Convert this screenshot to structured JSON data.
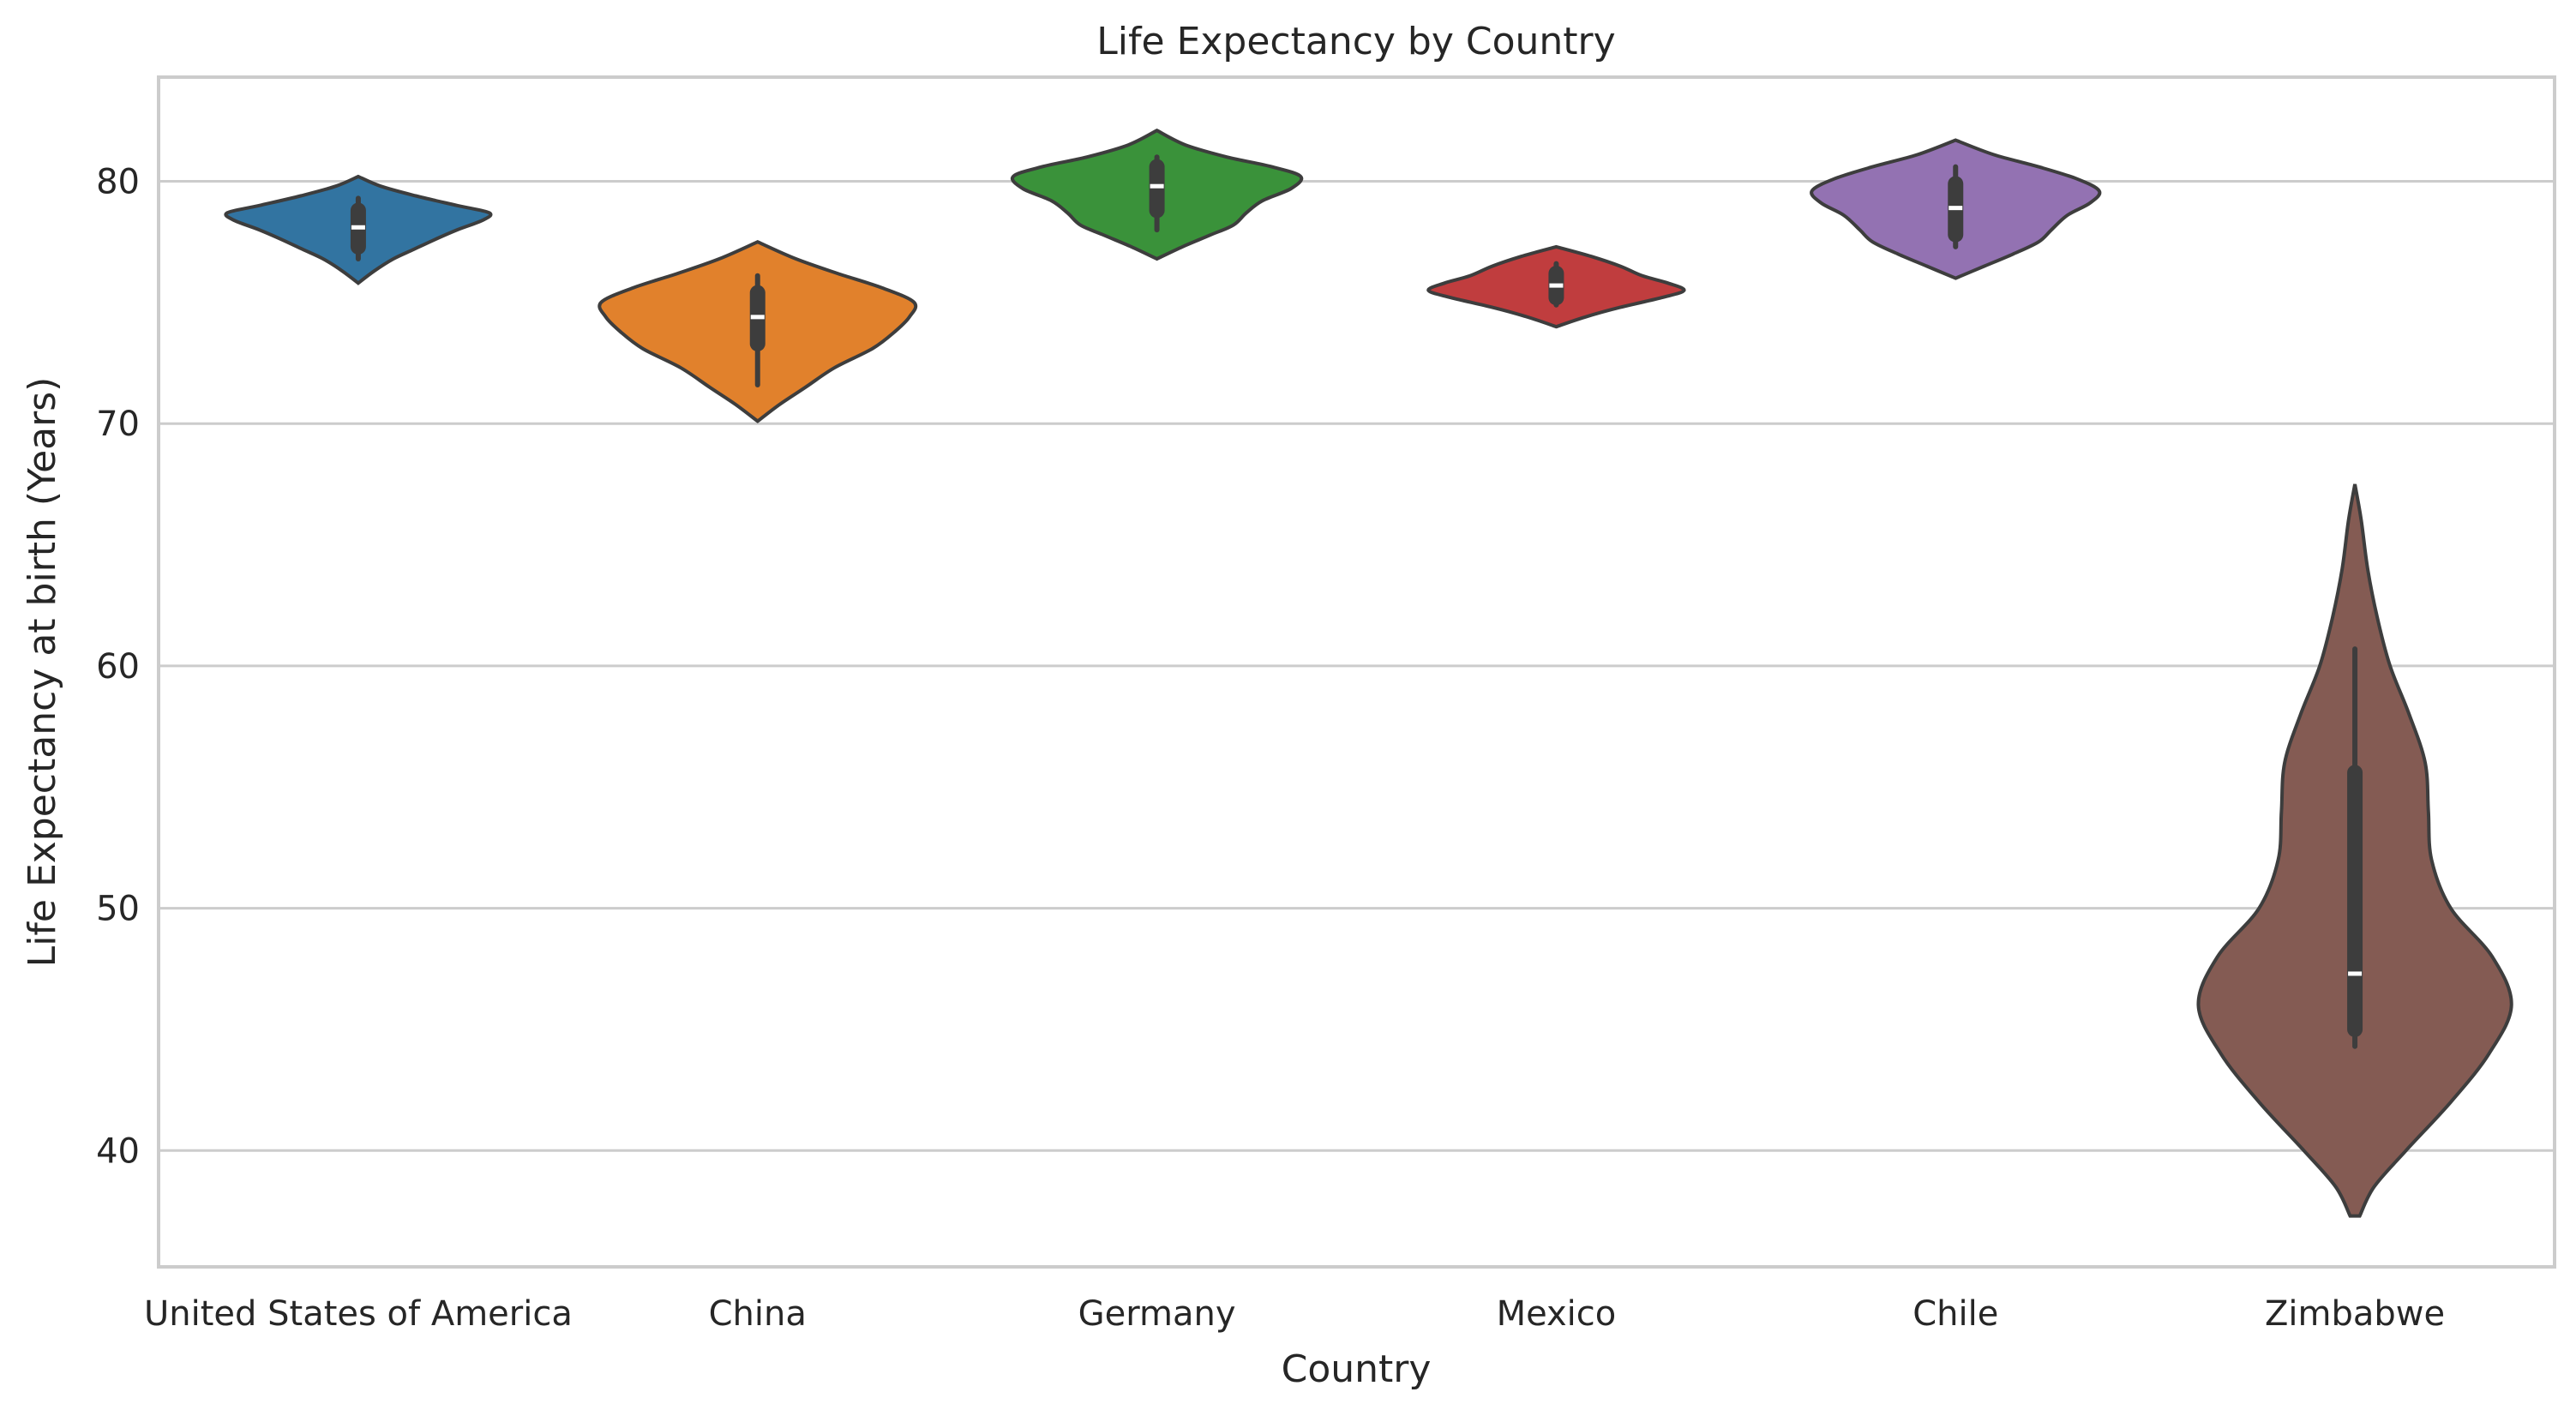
{
  "chart_data": {
    "type": "violin",
    "title": "Life Expectancy by Country",
    "xlabel": "Country",
    "ylabel": "Life Expectancy at birth (Years)",
    "ylim": [
      35.2,
      84.3
    ],
    "yticks": [
      40,
      50,
      60,
      70,
      80
    ],
    "grid": "y",
    "categories": [
      "United States of America",
      "China",
      "Germany",
      "Mexico",
      "Chile",
      "Zimbabwe"
    ],
    "colors": [
      "#3274a1",
      "#e1812c",
      "#3a923a",
      "#c03d3e",
      "#9372b2",
      "#845b53"
    ],
    "series": [
      {
        "category": "United States of America",
        "min": 76.8,
        "q1": 77.3,
        "median": 78.1,
        "q3": 78.8,
        "max": 79.3,
        "density": [
          [
            75.8,
            0.0
          ],
          [
            76.3,
            0.1
          ],
          [
            76.8,
            0.22
          ],
          [
            77.2,
            0.35
          ],
          [
            77.6,
            0.48
          ],
          [
            78.0,
            0.62
          ],
          [
            78.4,
            0.78
          ],
          [
            78.7,
            0.82
          ],
          [
            79.0,
            0.62
          ],
          [
            79.4,
            0.36
          ],
          [
            79.8,
            0.14
          ],
          [
            80.2,
            0.0
          ]
        ]
      },
      {
        "category": "China",
        "min": 71.6,
        "q1": 73.3,
        "median": 74.4,
        "q3": 75.4,
        "max": 76.1,
        "density": [
          [
            70.1,
            0.0
          ],
          [
            70.8,
            0.14
          ],
          [
            71.5,
            0.3
          ],
          [
            72.3,
            0.48
          ],
          [
            73.1,
            0.72
          ],
          [
            73.8,
            0.86
          ],
          [
            74.4,
            0.95
          ],
          [
            75.0,
            0.98
          ],
          [
            75.6,
            0.78
          ],
          [
            76.2,
            0.5
          ],
          [
            76.8,
            0.24
          ],
          [
            77.5,
            0.0
          ]
        ]
      },
      {
        "category": "Germany",
        "min": 78.0,
        "q1": 78.8,
        "median": 79.8,
        "q3": 80.6,
        "max": 81.0,
        "density": [
          [
            76.8,
            0.0
          ],
          [
            77.3,
            0.16
          ],
          [
            77.8,
            0.34
          ],
          [
            78.2,
            0.48
          ],
          [
            78.7,
            0.56
          ],
          [
            79.2,
            0.66
          ],
          [
            79.7,
            0.84
          ],
          [
            80.2,
            0.9
          ],
          [
            80.6,
            0.72
          ],
          [
            81.0,
            0.44
          ],
          [
            81.5,
            0.18
          ],
          [
            82.1,
            0.0
          ]
        ]
      },
      {
        "category": "Mexico",
        "min": 74.9,
        "q1": 75.2,
        "median": 75.7,
        "q3": 76.2,
        "max": 76.6,
        "density": [
          [
            74.0,
            0.0
          ],
          [
            74.4,
            0.18
          ],
          [
            74.8,
            0.4
          ],
          [
            75.2,
            0.66
          ],
          [
            75.5,
            0.8
          ],
          [
            75.8,
            0.7
          ],
          [
            76.1,
            0.54
          ],
          [
            76.5,
            0.4
          ],
          [
            76.9,
            0.22
          ],
          [
            77.3,
            0.0
          ]
        ]
      },
      {
        "category": "Chile",
        "min": 77.3,
        "q1": 77.8,
        "median": 78.9,
        "q3": 79.9,
        "max": 80.6,
        "density": [
          [
            76.0,
            0.0
          ],
          [
            76.5,
            0.18
          ],
          [
            77.0,
            0.36
          ],
          [
            77.5,
            0.52
          ],
          [
            78.0,
            0.6
          ],
          [
            78.6,
            0.7
          ],
          [
            79.1,
            0.84
          ],
          [
            79.6,
            0.9
          ],
          [
            80.1,
            0.76
          ],
          [
            80.6,
            0.52
          ],
          [
            81.1,
            0.24
          ],
          [
            81.7,
            0.0
          ]
        ]
      },
      {
        "category": "Zimbabwe",
        "min": 44.3,
        "q1": 45.0,
        "median": 47.3,
        "q3": 55.6,
        "max": 60.7,
        "density": [
          [
            37.3,
            0.03
          ],
          [
            38.5,
            0.12
          ],
          [
            40.0,
            0.32
          ],
          [
            42.0,
            0.6
          ],
          [
            44.0,
            0.84
          ],
          [
            46.0,
            0.98
          ],
          [
            48.0,
            0.86
          ],
          [
            50.0,
            0.6
          ],
          [
            52.0,
            0.48
          ],
          [
            54.0,
            0.46
          ],
          [
            56.0,
            0.44
          ],
          [
            58.0,
            0.34
          ],
          [
            60.0,
            0.22
          ],
          [
            62.0,
            0.14
          ],
          [
            64.0,
            0.08
          ],
          [
            66.0,
            0.04
          ],
          [
            67.5,
            0.0
          ]
        ]
      }
    ]
  }
}
